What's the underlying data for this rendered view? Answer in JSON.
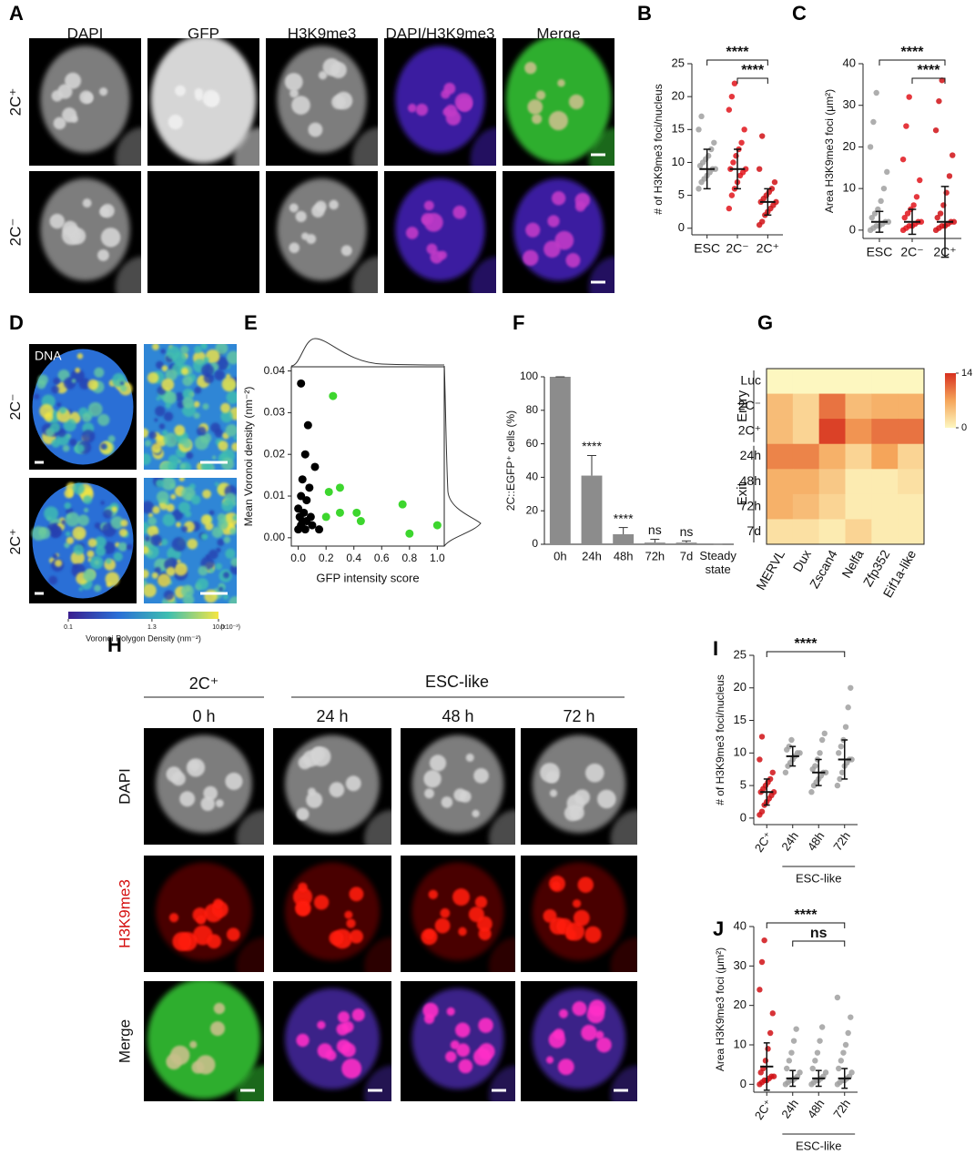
{
  "panel_labels": [
    "A",
    "B",
    "C",
    "D",
    "E",
    "F",
    "G",
    "H",
    "I",
    "J"
  ],
  "panel_a": {
    "columns": [
      "DAPI",
      "GFP",
      "H3K9me3",
      "DAPI/H3K9me3",
      "Merge"
    ],
    "rows": [
      "2C⁺",
      "2C⁻"
    ]
  },
  "panel_d": {
    "label": "DNA",
    "rows": [
      "2C⁻",
      "2C⁺"
    ],
    "colorbar": {
      "title": "Voronoi Polygon Density (nm⁻²)",
      "unit": "(x10⁻³)",
      "scale": "log",
      "lim": [
        0.1,
        10
      ],
      "ticks": [
        0.1,
        1.3,
        {
          "value": 10,
          "label": "10.0"
        }
      ],
      "colors": [
        "#3b1f8f",
        "#2a6fd6",
        "#3fbfb0",
        "#f5e642"
      ]
    }
  },
  "panel_h": {
    "groups": [
      "2C⁺",
      "ESC-like"
    ],
    "times": [
      "0 h",
      "24 h",
      "48 h",
      "72 h"
    ],
    "rows": [
      "DAPI",
      "H3K9me3",
      "Merge"
    ]
  },
  "chart_data": [
    {
      "type": "dotplot",
      "ylabel": "# of H3K9me3 foci/nucleus",
      "categories": [
        "ESC",
        "2C⁻",
        "2C⁺"
      ],
      "colors": [
        "#a0a0a0",
        "#e0141b",
        "#d01015"
      ],
      "ylim": [
        -1,
        25
      ],
      "yticks": [
        0,
        5,
        10,
        15,
        20,
        25
      ],
      "points": [
        [
          6,
          7,
          7.5,
          8,
          8.5,
          9,
          9,
          9.5,
          10,
          10.5,
          11,
          12,
          13,
          15,
          17
        ],
        [
          3,
          5,
          6,
          7,
          8,
          8.5,
          9,
          9,
          10,
          11,
          12,
          13,
          15,
          18,
          20,
          22
        ],
        [
          0.5,
          1,
          2,
          2.5,
          3,
          3.5,
          4,
          4,
          4.5,
          5,
          5.5,
          6,
          7,
          9,
          14
        ]
      ],
      "means": [
        9,
        9,
        4
      ],
      "sds": [
        3,
        3,
        2
      ],
      "brackets": [
        {
          "label": "****",
          "span": [
            0,
            2
          ]
        },
        {
          "label": "****",
          "span": [
            1,
            2
          ]
        }
      ]
    },
    {
      "type": "dotplot",
      "ylabel": "Area H3K9me3 foci (μm²)",
      "categories": [
        "ESC",
        "2C⁻",
        "2C⁺"
      ],
      "colors": [
        "#a0a0a0",
        "#e0141b",
        "#d01015"
      ],
      "ylim": [
        -2,
        40
      ],
      "yticks": [
        0,
        10,
        20,
        30,
        40
      ],
      "points": [
        [
          0,
          0.5,
          1,
          1,
          1.5,
          2,
          2,
          3,
          4,
          5,
          7,
          10,
          14,
          20,
          26,
          33
        ],
        [
          0,
          0.5,
          1,
          1,
          1.5,
          2,
          2,
          3,
          4,
          5,
          6,
          8,
          12,
          17,
          25,
          32
        ],
        [
          0,
          0.5,
          1,
          1,
          1.5,
          2,
          2,
          3,
          4,
          6,
          9,
          13,
          18,
          24,
          31,
          36
        ]
      ],
      "means": [
        2,
        2,
        2
      ],
      "sds": [
        2.5,
        3,
        8.5
      ],
      "brackets": [
        {
          "label": "****",
          "span": [
            0,
            2
          ]
        },
        {
          "label": "****",
          "span": [
            1,
            2
          ]
        }
      ]
    },
    {
      "type": "scatter",
      "xlabel": "GFP intensity score",
      "ylabel": "Mean Voronoi density (nm⁻²)",
      "xlim": [
        -0.05,
        1.05
      ],
      "ylim": [
        -0.002,
        0.041
      ],
      "xticks": [
        {
          "value": 0,
          "label": "0.0"
        },
        0.2,
        0.4,
        0.6,
        0.8,
        {
          "value": 1,
          "label": "1.0"
        }
      ],
      "yticks": [
        {
          "value": 0,
          "label": "0.00"
        },
        0.01,
        0.02,
        0.03,
        0.04
      ],
      "series": [
        {
          "color": "#000000",
          "x": [
            0.02,
            0.07,
            0.05,
            0.12,
            0.03,
            0.08,
            0.02,
            0.06,
            0.0,
            0.04,
            0.01,
            0.09,
            0.03,
            0.06,
            0.02,
            0.1,
            0.05,
            0.15,
            0.0
          ],
          "values": [
            0.037,
            0.027,
            0.02,
            0.017,
            0.014,
            0.012,
            0.01,
            0.009,
            0.007,
            0.006,
            0.005,
            0.005,
            0.004,
            0.004,
            0.003,
            0.003,
            0.002,
            0.002,
            0.002
          ]
        },
        {
          "color": "#3dd62e",
          "x": [
            0.25,
            0.3,
            0.22,
            0.2,
            0.3,
            0.42,
            0.45,
            0.75,
            0.8,
            1.0
          ],
          "values": [
            0.034,
            0.012,
            0.011,
            0.005,
            0.006,
            0.006,
            0.004,
            0.008,
            0.001,
            0.003
          ]
        }
      ]
    },
    {
      "type": "bar",
      "ylabel": "2C::EGFP⁺ cells (%)",
      "categories": [
        "0h",
        "24h",
        "48h",
        "72h",
        "7d",
        "Steady state"
      ],
      "values": [
        100,
        41,
        6,
        1,
        1,
        0
      ],
      "errors": [
        0,
        12,
        4,
        2,
        1,
        0
      ],
      "color": "#8c8c8c",
      "significance": [
        null,
        "****",
        "****",
        "ns",
        "ns",
        null
      ],
      "ylim": [
        0,
        100
      ],
      "yticks": [
        0,
        20,
        40,
        60,
        80,
        100
      ]
    },
    {
      "type": "heatmap",
      "rows": [
        "Luc",
        "2C⁻",
        "2C⁺",
        "24h",
        "48h",
        "72h",
        "7d"
      ],
      "columns": [
        "MERVL",
        "Dux",
        "Zscan4",
        "Nelfa",
        "Zfp352",
        "Eif1a-like"
      ],
      "values": [
        [
          0,
          0,
          0,
          0,
          0,
          0
        ],
        [
          5,
          3,
          10,
          5,
          6,
          6
        ],
        [
          5,
          3,
          13,
          8,
          10,
          10
        ],
        [
          9,
          9,
          6,
          3,
          7,
          3
        ],
        [
          6,
          6,
          4,
          1,
          1,
          2
        ],
        [
          6,
          5,
          3,
          1,
          1,
          1
        ],
        [
          2,
          2,
          1,
          3,
          1,
          1
        ]
      ],
      "row_groups": [
        {
          "label": "Entry",
          "span": [
            0,
            2
          ]
        },
        {
          "label": "Exit",
          "span": [
            3,
            6
          ]
        }
      ],
      "colorbar": {
        "lim": [
          0,
          14
        ],
        "ticks": [
          0,
          14
        ],
        "colors": [
          "#fdf7c0",
          "#f5a55a",
          "#d7301f"
        ]
      }
    },
    {
      "type": "dotplot",
      "ylabel": "# of H3K9me3 foci/nucleus",
      "categories": [
        "2C⁺",
        "24h",
        "48h",
        "72h"
      ],
      "colors": [
        "#d01015",
        "#a0a0a0",
        "#a0a0a0",
        "#a0a0a0"
      ],
      "ylim": [
        -1,
        25
      ],
      "yticks": [
        0,
        5,
        10,
        15,
        20,
        25
      ],
      "points": [
        [
          0.5,
          1,
          2,
          2.5,
          3,
          3.5,
          4,
          4,
          4.5,
          5,
          5.5,
          6,
          7,
          9,
          12.5
        ],
        [
          7,
          8,
          8.5,
          9,
          9.5,
          10,
          10,
          10.5,
          11,
          12
        ],
        [
          4,
          5,
          5.5,
          6,
          6.5,
          7,
          7,
          7.5,
          8,
          9,
          10,
          12,
          13
        ],
        [
          5,
          6,
          7,
          8,
          8.5,
          9,
          9,
          10,
          11,
          12,
          14,
          17,
          20
        ]
      ],
      "means": [
        4,
        9.5,
        7,
        9
      ],
      "sds": [
        2,
        1.5,
        2,
        3
      ],
      "brackets": [
        {
          "label": "****",
          "span": [
            0,
            3
          ]
        }
      ],
      "group": {
        "label": "ESC-like",
        "span": [
          1,
          3
        ]
      }
    },
    {
      "type": "dotplot",
      "ylabel": "Area H3K9me3 foci (μm²)",
      "categories": [
        "2C⁺",
        "24h",
        "48h",
        "72h"
      ],
      "colors": [
        "#d01015",
        "#a0a0a0",
        "#a0a0a0",
        "#a0a0a0"
      ],
      "ylim": [
        -2,
        40
      ],
      "yticks": [
        0,
        10,
        20,
        30,
        40
      ],
      "points": [
        [
          0,
          0.5,
          1,
          1,
          1.5,
          2,
          2,
          3,
          4,
          6,
          9,
          13,
          18,
          24,
          31,
          36.5
        ],
        [
          0,
          0.5,
          1,
          1,
          1.5,
          2,
          3,
          4,
          6,
          8,
          11,
          14
        ],
        [
          0,
          0.5,
          1,
          1,
          1.5,
          2,
          3,
          4,
          6,
          8,
          11,
          14.5
        ],
        [
          0,
          0.5,
          1,
          1,
          1.5,
          2,
          3,
          4,
          6,
          8,
          10,
          13,
          17,
          22
        ]
      ],
      "means": [
        4.5,
        1.5,
        1.5,
        1.5
      ],
      "sds": [
        6,
        2,
        2,
        2.5
      ],
      "brackets": [
        {
          "label": "****",
          "span": [
            0,
            3
          ]
        },
        {
          "label": "ns",
          "span": [
            1,
            3
          ]
        }
      ],
      "group": {
        "label": "ESC-like",
        "span": [
          1,
          3
        ]
      }
    }
  ]
}
